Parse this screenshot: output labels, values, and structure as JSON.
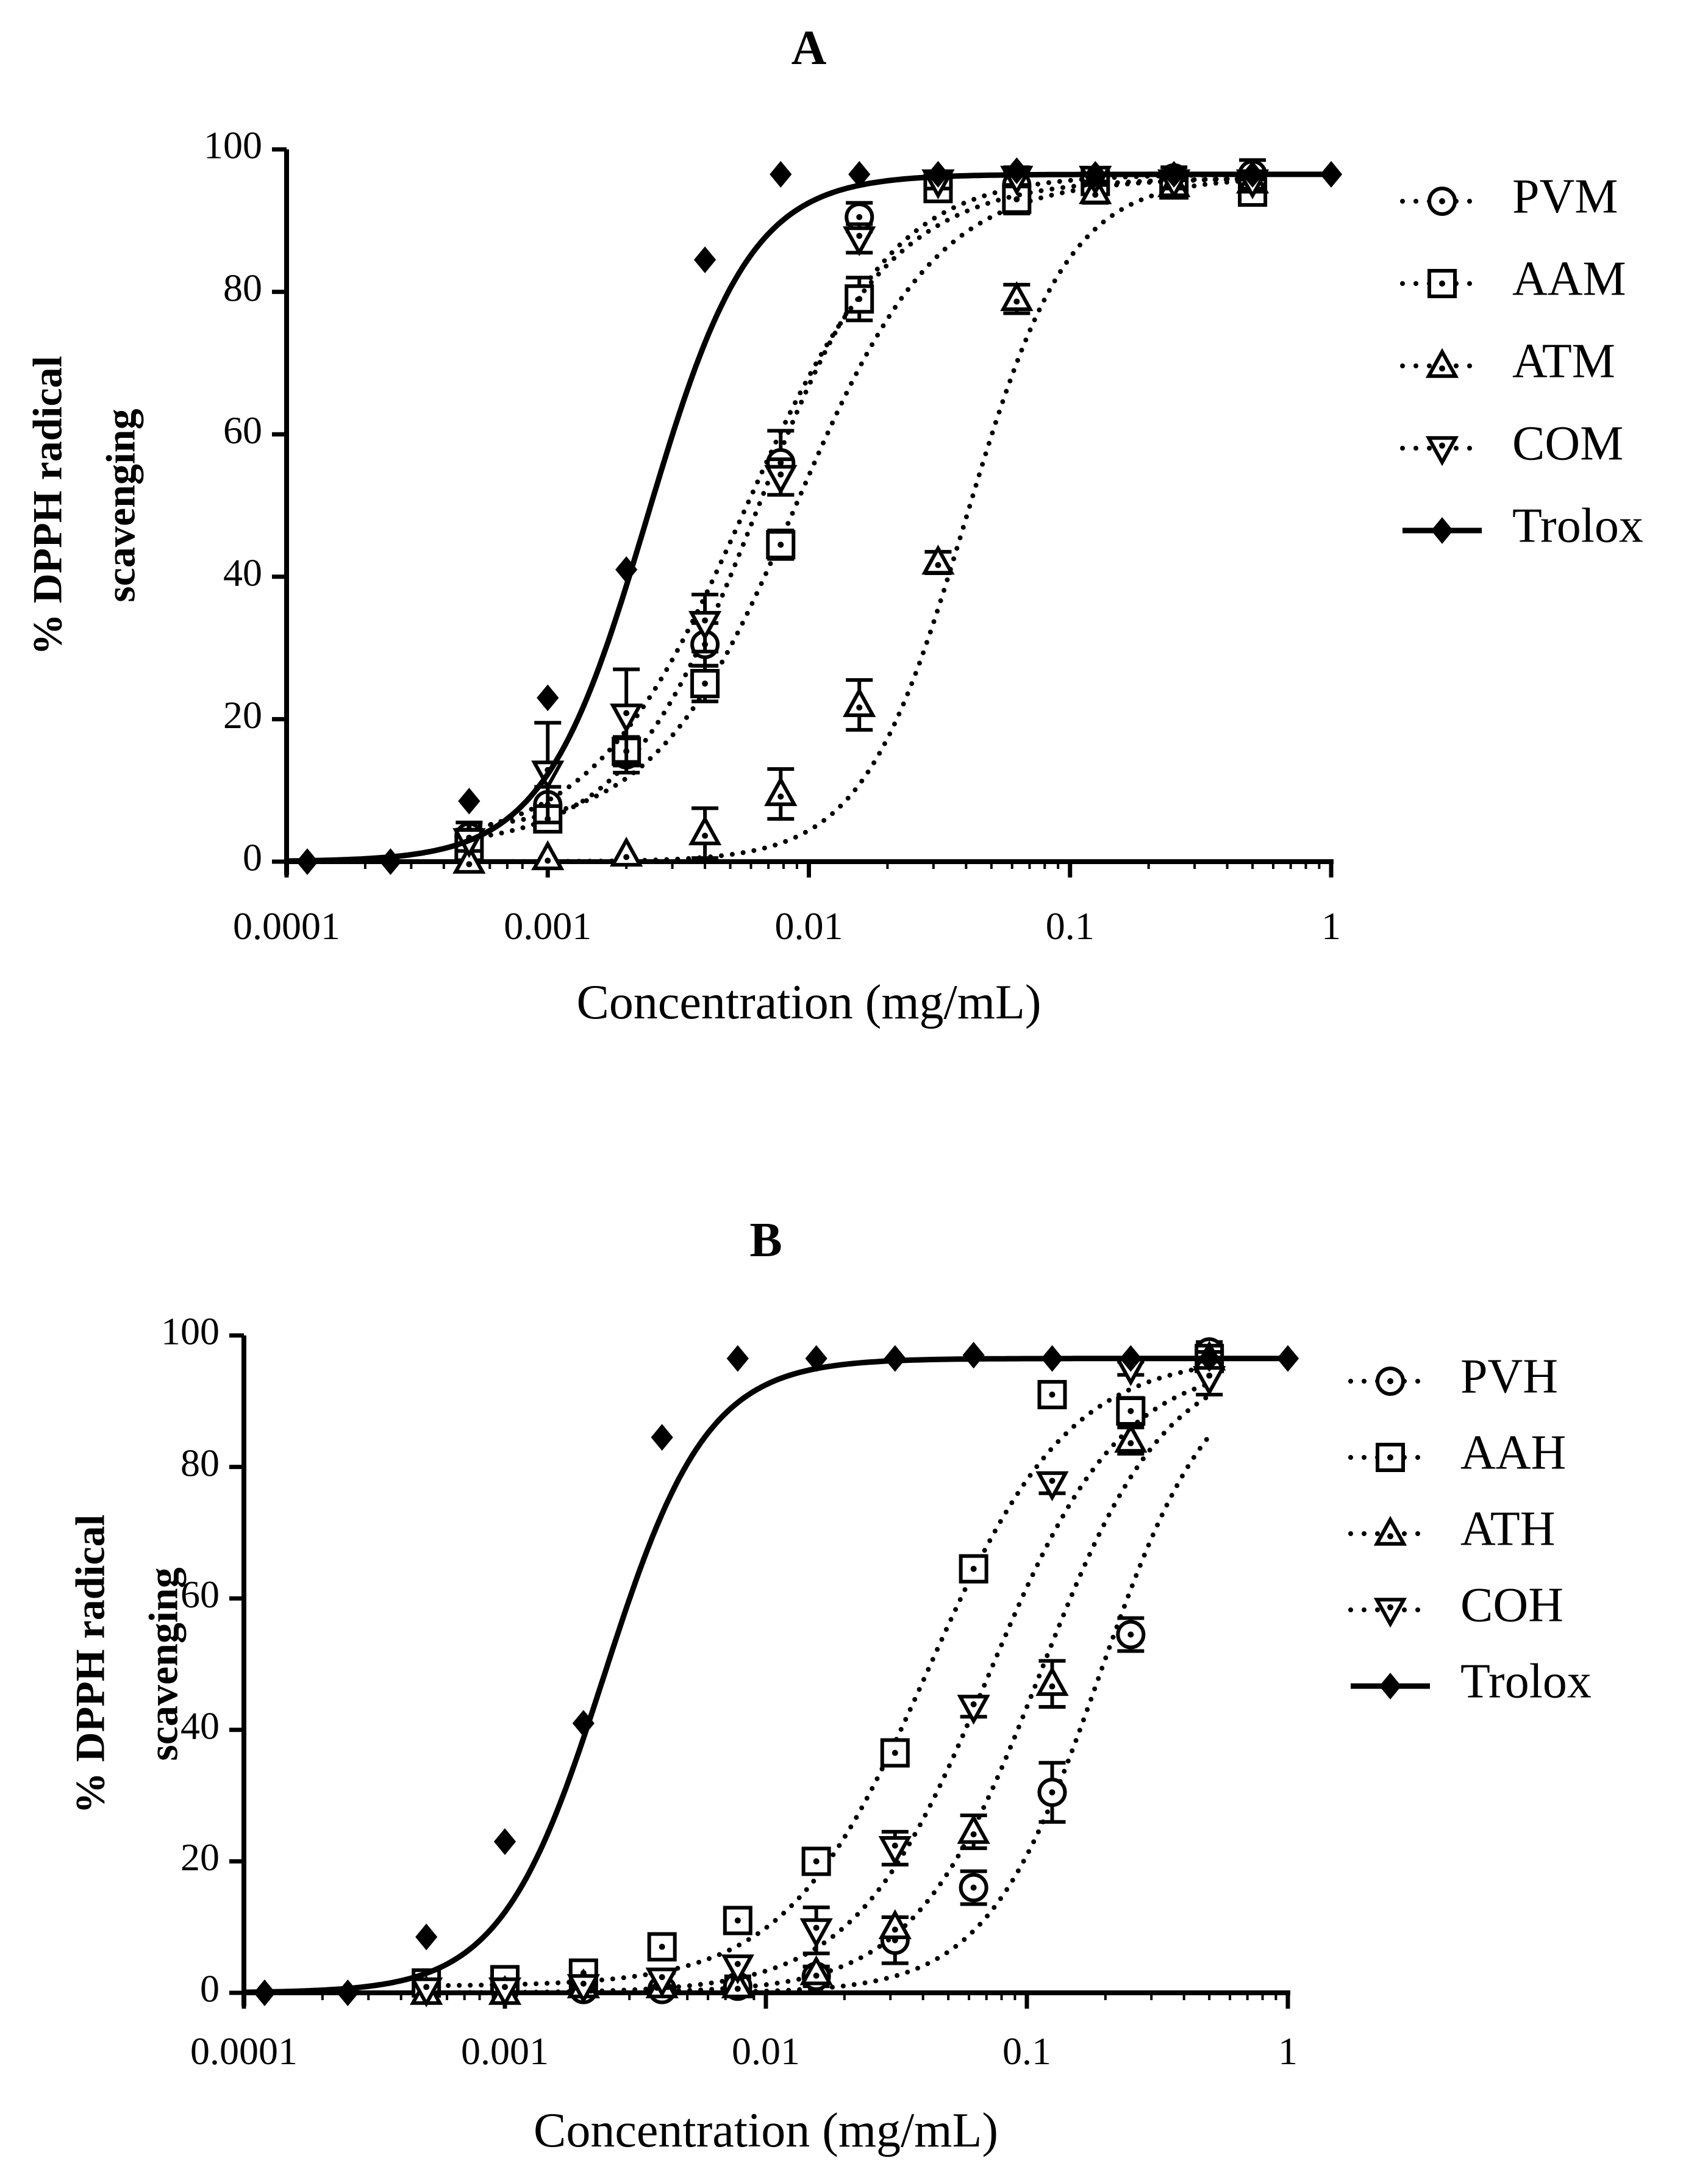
{
  "chart_data": [
    {
      "type": "scatter",
      "title": "A",
      "xlabel": "Concentration (mg/mL)",
      "ylabel_lines": [
        "% DPPH radical",
        "scavenging"
      ],
      "x_scale": "log",
      "xlim": [
        0.0001,
        1
      ],
      "ylim": [
        0,
        100
      ],
      "x_ticks": [
        {
          "value": 0.0001,
          "label": "0.0001"
        },
        {
          "value": 0.001,
          "label": "0.001"
        },
        {
          "value": 0.01,
          "label": "0.01"
        },
        {
          "value": 0.1,
          "label": "0.1"
        },
        {
          "value": 1,
          "label": "1"
        }
      ],
      "y_ticks": [
        {
          "value": 0,
          "label": "0"
        },
        {
          "value": 20,
          "label": "20"
        },
        {
          "value": 40,
          "label": "40"
        },
        {
          "value": 60,
          "label": "60"
        },
        {
          "value": 80,
          "label": "80"
        },
        {
          "value": 100,
          "label": "100"
        }
      ],
      "legend_position": "right",
      "series": [
        {
          "name": "PVM",
          "marker": "circle",
          "line": "dotted",
          "fit": {
            "bottom": 2,
            "top": 96.5,
            "logec50": -2.2,
            "hill": 1.7
          },
          "points": [
            [
              0.0005,
              3.5,
              2.0
            ],
            [
              0.001,
              8,
              2.5
            ],
            [
              0.002,
              15,
              2.5
            ],
            [
              0.004,
              30.5,
              3.0
            ],
            [
              0.0078,
              56,
              4.5
            ],
            [
              0.0156,
              90.5,
              2.0
            ],
            [
              0.03125,
              95,
              1.5
            ],
            [
              0.0625,
              95,
              2.5
            ],
            [
              0.125,
              95.5,
              1.0
            ],
            [
              0.25,
              96,
              1.5
            ],
            [
              0.5,
              96.5,
              2.0
            ]
          ]
        },
        {
          "name": "AAM",
          "marker": "square",
          "line": "dotted",
          "fit": {
            "bottom": 4,
            "top": 96,
            "logec50": -2.05,
            "hill": 1.6
          },
          "points": [
            [
              0.0005,
              2,
              1.0
            ],
            [
              0.001,
              6,
              1.5
            ],
            [
              0.002,
              15.5,
              2.0
            ],
            [
              0.004,
              25,
              2.5
            ],
            [
              0.0078,
              44.5,
              2.0
            ],
            [
              0.0156,
              79,
              3.0
            ],
            [
              0.03125,
              94.5,
              1.5
            ],
            [
              0.0625,
              93,
              2.0
            ],
            [
              0.125,
              95.5,
              1.0
            ],
            [
              0.25,
              95,
              1.5
            ],
            [
              0.5,
              94,
              1.5
            ]
          ]
        },
        {
          "name": "ATM",
          "marker": "triangle-up",
          "line": "dotted",
          "fit": {
            "bottom": 0,
            "top": 96,
            "logec50": -1.4,
            "hill": 2.2
          },
          "points": [
            [
              0.0005,
              0,
              0.5
            ],
            [
              0.001,
              0.5,
              0.5
            ],
            [
              0.002,
              1,
              0.5
            ],
            [
              0.004,
              4,
              3.5
            ],
            [
              0.0078,
              9.5,
              3.5
            ],
            [
              0.0156,
              22,
              3.5
            ],
            [
              0.03125,
              42,
              1.5
            ],
            [
              0.0625,
              79,
              2.0
            ],
            [
              0.125,
              94,
              1.5
            ],
            [
              0.25,
              95,
              1.0
            ],
            [
              0.5,
              95.5,
              1.0
            ]
          ]
        },
        {
          "name": "COM",
          "marker": "triangle-down",
          "line": "dotted",
          "fit": {
            "bottom": 2,
            "top": 96,
            "logec50": -2.25,
            "hill": 1.5
          },
          "points": [
            [
              0.0005,
              3,
              1.5
            ],
            [
              0.001,
              12.5,
              7.0
            ],
            [
              0.002,
              20.5,
              6.5
            ],
            [
              0.004,
              33.5,
              4.0
            ],
            [
              0.0078,
              54,
              2.5
            ],
            [
              0.0156,
              87.5,
              2.0
            ],
            [
              0.03125,
              95.5,
              1.0
            ],
            [
              0.0625,
              96,
              1.0
            ],
            [
              0.125,
              96,
              1.0
            ],
            [
              0.25,
              95.5,
              1.0
            ],
            [
              0.5,
              95.5,
              1.0
            ]
          ]
        },
        {
          "name": "Trolox",
          "marker": "diamond",
          "line": "solid",
          "fit": {
            "bottom": 0,
            "top": 96.5,
            "logec50": -2.62,
            "hill": 2.2
          },
          "points": [
            [
              0.00012,
              0
            ],
            [
              0.00025,
              0
            ],
            [
              0.0005,
              8.5
            ],
            [
              0.001,
              23
            ],
            [
              0.002,
              41
            ],
            [
              0.004,
              84.5
            ],
            [
              0.0078,
              96.5
            ],
            [
              0.0156,
              96.5
            ],
            [
              0.03125,
              96.5
            ],
            [
              0.0625,
              97
            ],
            [
              0.125,
              96.5
            ],
            [
              0.25,
              96.5
            ],
            [
              0.5,
              96.5
            ],
            [
              1,
              96.5
            ]
          ]
        }
      ]
    },
    {
      "type": "scatter",
      "title": "B",
      "xlabel": "Concentration (mg/mL)",
      "ylabel_lines": [
        "% DPPH radical",
        "scavenging"
      ],
      "x_scale": "log",
      "xlim": [
        0.0001,
        1
      ],
      "ylim": [
        0,
        100
      ],
      "x_ticks": [
        {
          "value": 0.0001,
          "label": "0.0001"
        },
        {
          "value": 0.001,
          "label": "0.001"
        },
        {
          "value": 0.01,
          "label": "0.01"
        },
        {
          "value": 0.1,
          "label": "0.1"
        },
        {
          "value": 1,
          "label": "1"
        }
      ],
      "y_ticks": [
        {
          "value": 0,
          "label": "0"
        },
        {
          "value": 20,
          "label": "20"
        },
        {
          "value": 40,
          "label": "40"
        },
        {
          "value": 60,
          "label": "60"
        },
        {
          "value": 80,
          "label": "80"
        },
        {
          "value": 100,
          "label": "100"
        }
      ],
      "legend_position": "right",
      "series": [
        {
          "name": "PVH",
          "marker": "circle",
          "line": "dotted",
          "fit": {
            "bottom": 0,
            "top": 97,
            "logec50": -0.72,
            "hill": 2.0
          },
          "points": [
            [
              0.0005,
              0.5,
              0.5
            ],
            [
              0.001,
              0.5,
              0.5
            ],
            [
              0.002,
              0.5,
              0.5
            ],
            [
              0.004,
              0.5,
              0.5
            ],
            [
              0.0078,
              1,
              1.0
            ],
            [
              0.0156,
              2.5,
              1.5
            ],
            [
              0.03125,
              8,
              3.5
            ],
            [
              0.0625,
              16,
              2.5
            ],
            [
              0.125,
              30.5,
              4.5
            ],
            [
              0.25,
              54.5,
              2.5
            ],
            [
              0.5,
              97.5,
              1.5
            ]
          ]
        },
        {
          "name": "AAH",
          "marker": "square",
          "line": "dotted",
          "fit": {
            "bottom": 1,
            "top": 97,
            "logec50": -1.38,
            "hill": 1.6
          },
          "points": [
            [
              0.0005,
              1.5,
              0.5
            ],
            [
              0.001,
              2,
              0.5
            ],
            [
              0.002,
              3,
              0.5
            ],
            [
              0.004,
              7,
              1.0
            ],
            [
              0.0078,
              11,
              1.0
            ],
            [
              0.0156,
              20,
              1.0
            ],
            [
              0.03125,
              36.5,
              1.0
            ],
            [
              0.0625,
              64.5,
              1.0
            ],
            [
              0.125,
              91,
              1.0
            ],
            [
              0.25,
              88.5,
              2.0
            ],
            [
              0.5,
              96.5,
              1.0
            ]
          ]
        },
        {
          "name": "ATH",
          "marker": "triangle-up",
          "line": "dotted",
          "fit": {
            "bottom": 0,
            "top": 97,
            "logec50": -0.95,
            "hill": 1.8
          },
          "points": [
            [
              0.0005,
              0,
              0.5
            ],
            [
              0.001,
              0,
              0.5
            ],
            [
              0.002,
              1,
              0.5
            ],
            [
              0.004,
              1,
              0.5
            ],
            [
              0.0078,
              1,
              0.5
            ],
            [
              0.0156,
              3,
              1.0
            ],
            [
              0.03125,
              10,
              1.5
            ],
            [
              0.0625,
              24.5,
              2.5
            ],
            [
              0.125,
              47,
              3.5
            ],
            [
              0.25,
              84,
              2.0
            ],
            [
              0.5,
              96.5,
              1.0
            ]
          ]
        },
        {
          "name": "COH",
          "marker": "triangle-down",
          "line": "dotted",
          "fit": {
            "bottom": 0,
            "top": 96,
            "logec50": -1.15,
            "hill": 1.7
          },
          "points": [
            [
              0.0005,
              0.5,
              0.5
            ],
            [
              0.001,
              0.5,
              0.5
            ],
            [
              0.002,
              1,
              0.5
            ],
            [
              0.004,
              2,
              1.0
            ],
            [
              0.0078,
              4,
              1.5
            ],
            [
              0.0156,
              9.5,
              3.5
            ],
            [
              0.03125,
              22,
              2.5
            ],
            [
              0.0625,
              43.5,
              1.5
            ],
            [
              0.125,
              77.5,
              1.5
            ],
            [
              0.25,
              95,
              1.0
            ],
            [
              0.5,
              93.5,
              2.5
            ]
          ]
        },
        {
          "name": "Trolox",
          "marker": "diamond",
          "line": "solid",
          "fit": {
            "bottom": 0,
            "top": 96.5,
            "logec50": -2.62,
            "hill": 2.2
          },
          "points": [
            [
              0.00012,
              0
            ],
            [
              0.00025,
              0
            ],
            [
              0.0005,
              8.5
            ],
            [
              0.001,
              23
            ],
            [
              0.002,
              41
            ],
            [
              0.004,
              84.5
            ],
            [
              0.0078,
              96.5
            ],
            [
              0.0156,
              96.5
            ],
            [
              0.03125,
              96.5
            ],
            [
              0.0625,
              97
            ],
            [
              0.125,
              96.5
            ],
            [
              0.25,
              96.5
            ],
            [
              0.5,
              96.5
            ],
            [
              1,
              96.5
            ]
          ]
        }
      ]
    }
  ]
}
